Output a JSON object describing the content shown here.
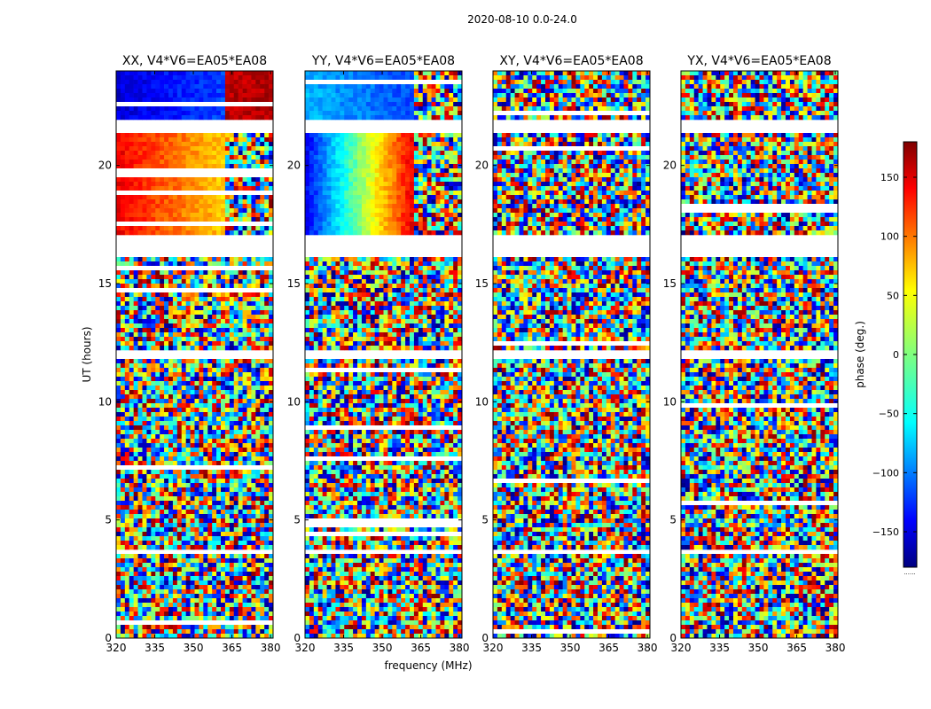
{
  "chart_data": {
    "type": "heatmap",
    "title": "2020-08-10 0.0-24.0",
    "xlabel": "frequency (MHz)",
    "ylabel": "UT (hours)",
    "xlim": [
      320,
      381
    ],
    "ylim": [
      0,
      24
    ],
    "xticks": [
      320,
      335,
      350,
      365,
      380
    ],
    "yticks": [
      0,
      5,
      10,
      15,
      20
    ],
    "grid": false,
    "colorbar": {
      "label": "phase (deg.)",
      "range": [
        -180,
        180
      ],
      "ticks": [
        150,
        100,
        50,
        0,
        -50,
        -100,
        -150
      ],
      "tick_labels": [
        "150",
        "100",
        "50",
        "0",
        "−50",
        "−100",
        "−150"
      ],
      "colormap": [
        "#00007f",
        "#0000ff",
        "#007fff",
        "#00ffff",
        "#7fff7f",
        "#ffff00",
        "#ff7f00",
        "#ff0000",
        "#7f0000"
      ],
      "footnote": "......"
    },
    "panels": [
      {
        "name": "XX",
        "title": "XX, V4*V6=EA05*EA08"
      },
      {
        "name": "YY",
        "title": "YY, V4*V6=EA05*EA08"
      },
      {
        "name": "XY",
        "title": "XY, V4*V6=EA05*EA08"
      },
      {
        "name": "YX",
        "title": "YX, V4*V6=EA05*EA08"
      }
    ],
    "data_gaps_ut": [
      [
        16.2,
        17.1
      ],
      [
        21.3,
        21.9
      ],
      [
        11.8,
        12.1
      ],
      [
        3.6,
        3.8
      ]
    ],
    "coherent_regions": [
      {
        "panel": "XX",
        "ut_range": [
          21.9,
          24.0
        ],
        "freq_range": [
          320,
          363
        ],
        "phase_start": -150,
        "phase_end": -110
      },
      {
        "panel": "XX",
        "ut_range": [
          21.9,
          24.0
        ],
        "freq_range": [
          363,
          381
        ],
        "phase_start": 160,
        "phase_end": 160
      },
      {
        "panel": "XX",
        "ut_range": [
          17.1,
          21.3
        ],
        "freq_range": [
          320,
          363
        ],
        "phase_start": 140,
        "phase_end": 60
      },
      {
        "panel": "YY",
        "ut_range": [
          21.9,
          24.0
        ],
        "freq_range": [
          320,
          363
        ],
        "phase_start": -70,
        "phase_end": -110
      },
      {
        "panel": "YY",
        "ut_range": [
          17.1,
          21.3
        ],
        "freq_range": [
          320,
          363
        ],
        "phase_start": -140,
        "phase_end": 150
      }
    ]
  }
}
